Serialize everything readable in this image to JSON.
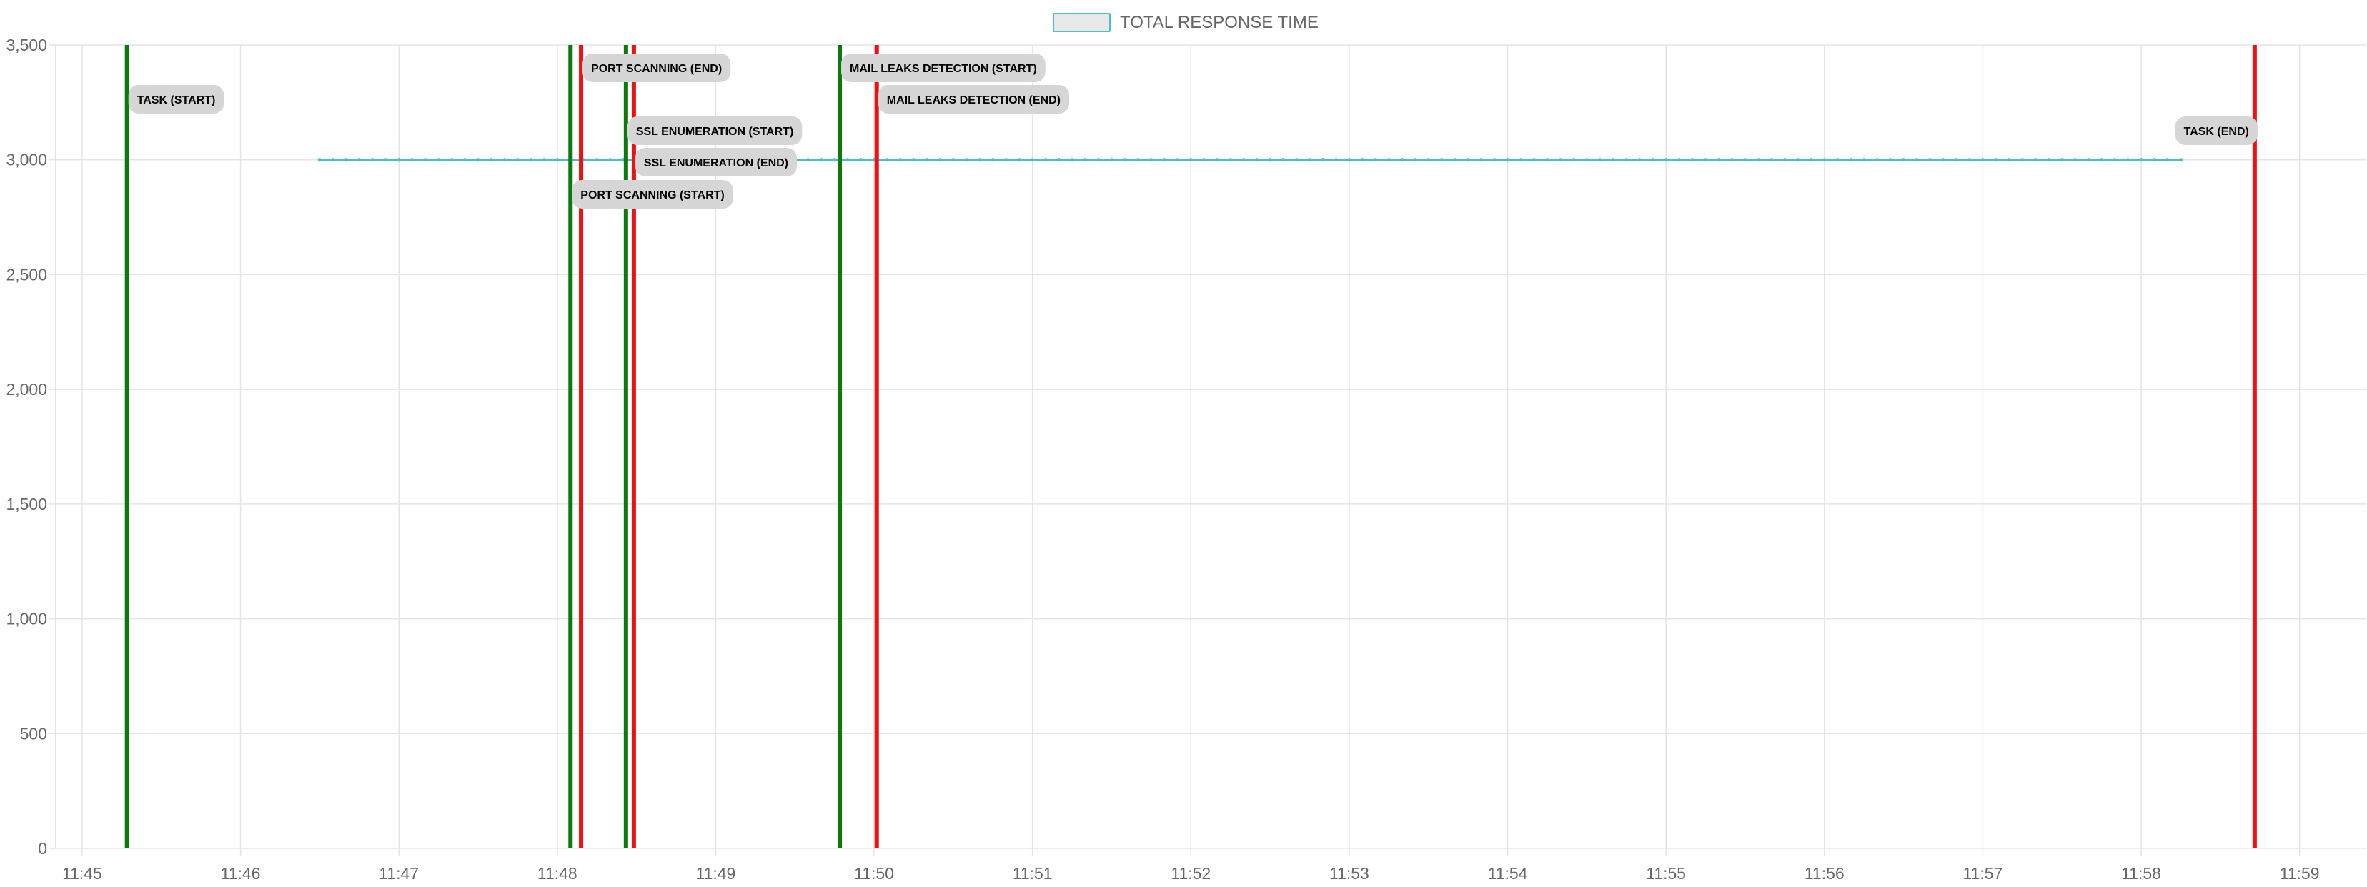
{
  "chart_data": {
    "type": "line",
    "legend": {
      "label": "TOTAL RESPONSE TIME",
      "position": "top-center"
    },
    "grid": true,
    "x_axis": {
      "min": "11:44:50",
      "max": "11:59:25",
      "ticks": [
        "11:45",
        "11:46",
        "11:47",
        "11:48",
        "11:49",
        "11:50",
        "11:51",
        "11:52",
        "11:53",
        "11:54",
        "11:55",
        "11:56",
        "11:57",
        "11:58",
        "11:59"
      ]
    },
    "y_axis": {
      "min": 0,
      "max": 3500,
      "ticks": [
        0,
        500,
        1000,
        1500,
        2000,
        2500,
        3000,
        3500
      ],
      "tick_labels": [
        "0",
        "500",
        "1,000",
        "1,500",
        "2,000",
        "2,500",
        "3,000",
        "3,500"
      ]
    },
    "series": [
      {
        "name": "TOTAL RESPONSE TIME",
        "x_start": "11:46:30",
        "x_end": "11:58:15",
        "sample_interval_seconds": 5,
        "value": 3000
      }
    ],
    "annotations": [
      {
        "label": "TASK (START)",
        "time": "11:45:17",
        "kind": "start"
      },
      {
        "label": "PORT SCANNING (START)",
        "time": "11:48:05",
        "kind": "start"
      },
      {
        "label": "PORT SCANNING (END)",
        "time": "11:48:09",
        "kind": "end"
      },
      {
        "label": "SSL ENUMERATION (START)",
        "time": "11:48:26",
        "kind": "start"
      },
      {
        "label": "SSL ENUMERATION (END)",
        "time": "11:48:29",
        "kind": "end"
      },
      {
        "label": "MAIL LEAKS DETECTION (START)",
        "time": "11:49:47",
        "kind": "start"
      },
      {
        "label": "MAIL LEAKS DETECTION (END)",
        "time": "11:50:01",
        "kind": "end"
      },
      {
        "label": "TASK (END)",
        "time": "11:58:43",
        "kind": "end"
      }
    ]
  },
  "colors": {
    "series_line": "#4bc0c0",
    "legend_box_fill": "#e8e8e8",
    "start_marker": "#0a7a0a",
    "end_marker": "#ee1111",
    "annotation_bg": "#d6d6d6",
    "grid": "#e5e5e5",
    "axis_text": "#666666"
  }
}
